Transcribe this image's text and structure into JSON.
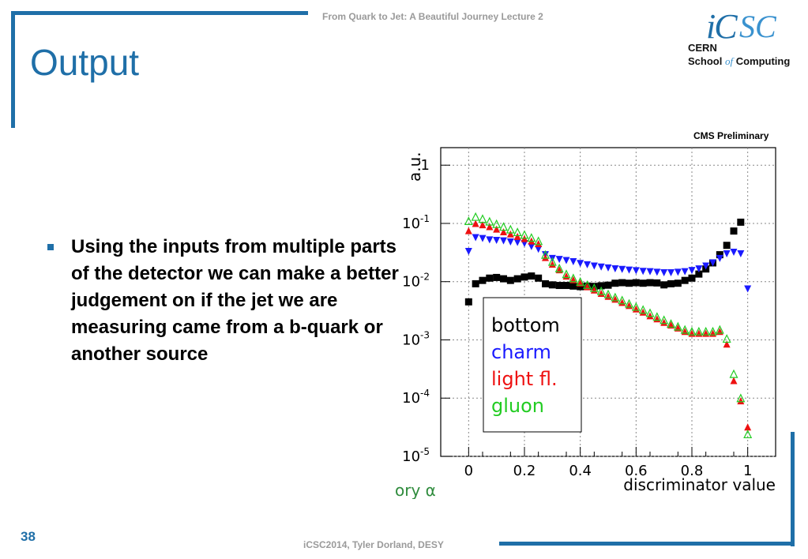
{
  "header": {
    "text": "From Quark to Jet: A Beautiful Journey Lecture 2"
  },
  "title": "Output",
  "logo": {
    "ic": "iC",
    "sc": "SC",
    "cern": "CERN",
    "school_pre": "School ",
    "school_of": "of",
    "school_post": " Computing"
  },
  "bullet": {
    "text": "Using the inputs from multiple parts of the detector we can make a better judgement on if the jet we are measuring came from a b-quark or another source"
  },
  "footer": {
    "text": "iCSC2014, Tyler Dorland, DESY",
    "slide_number": "38"
  },
  "chart_data": {
    "type": "scatter",
    "top_text": "CMS Preliminary",
    "cut_text": "ory α",
    "xlabel": "discriminator value",
    "ylabel": "a.u.",
    "xlim": [
      -0.1,
      1.1
    ],
    "ylim": [
      1e-05,
      2
    ],
    "yscale": "log",
    "xticks": [
      "0",
      "0.2",
      "0.4",
      "0.6",
      "0.8",
      "1"
    ],
    "xtick_values": [
      0,
      0.2,
      0.4,
      0.6,
      0.8,
      1
    ],
    "yticks": [
      {
        "base": "1",
        "exp": "",
        "value": 1
      },
      {
        "base": "10",
        "exp": "-1",
        "value": 0.1
      },
      {
        "base": "10",
        "exp": "-2",
        "value": 0.01
      },
      {
        "base": "10",
        "exp": "-3",
        "value": 0.001
      },
      {
        "base": "10",
        "exp": "-4",
        "value": 0.0001
      },
      {
        "base": "10",
        "exp": "-5",
        "value": 1e-05
      }
    ],
    "grid": true,
    "legend_position": "center-left",
    "series": [
      {
        "name": "bottom",
        "marker": "square",
        "color": "#000000",
        "x": [
          0.0,
          0.025,
          0.05,
          0.075,
          0.1,
          0.125,
          0.15,
          0.175,
          0.2,
          0.225,
          0.25,
          0.275,
          0.3,
          0.325,
          0.35,
          0.375,
          0.4,
          0.425,
          0.45,
          0.475,
          0.5,
          0.525,
          0.55,
          0.575,
          0.6,
          0.625,
          0.65,
          0.675,
          0.7,
          0.725,
          0.75,
          0.775,
          0.8,
          0.825,
          0.85,
          0.875,
          0.9,
          0.925,
          0.95,
          0.975
        ],
        "y": [
          0.0045,
          0.0092,
          0.0105,
          0.0115,
          0.0118,
          0.0112,
          0.0105,
          0.0112,
          0.012,
          0.0125,
          0.0115,
          0.0092,
          0.0088,
          0.0086,
          0.0086,
          0.0084,
          0.0082,
          0.0084,
          0.0083,
          0.0085,
          0.0087,
          0.0094,
          0.0096,
          0.0094,
          0.0096,
          0.0094,
          0.0096,
          0.0095,
          0.0088,
          0.0092,
          0.0094,
          0.0105,
          0.0115,
          0.0135,
          0.0165,
          0.021,
          0.029,
          0.042,
          0.074,
          0.105
        ]
      },
      {
        "name": "charm",
        "marker": "triangle-down",
        "color": "#1a1aff",
        "x": [
          0.0,
          0.025,
          0.05,
          0.075,
          0.1,
          0.125,
          0.15,
          0.175,
          0.2,
          0.225,
          0.25,
          0.275,
          0.3,
          0.325,
          0.35,
          0.375,
          0.4,
          0.425,
          0.45,
          0.475,
          0.5,
          0.525,
          0.55,
          0.575,
          0.6,
          0.625,
          0.65,
          0.675,
          0.7,
          0.725,
          0.75,
          0.775,
          0.8,
          0.825,
          0.85,
          0.875,
          0.9,
          0.925,
          0.95,
          0.975,
          1.0
        ],
        "y": [
          0.033,
          0.057,
          0.055,
          0.052,
          0.051,
          0.05,
          0.048,
          0.047,
          0.045,
          0.04,
          0.036,
          0.029,
          0.025,
          0.024,
          0.023,
          0.022,
          0.0205,
          0.0195,
          0.0185,
          0.0178,
          0.0172,
          0.0166,
          0.0162,
          0.0158,
          0.0154,
          0.015,
          0.0148,
          0.0145,
          0.0142,
          0.0142,
          0.0145,
          0.0148,
          0.0155,
          0.0165,
          0.0185,
          0.021,
          0.025,
          0.03,
          0.032,
          0.03,
          0.0075
        ]
      },
      {
        "name": "light fl.",
        "marker": "triangle-up",
        "color": "#ee1111",
        "x": [
          0.0,
          0.025,
          0.05,
          0.075,
          0.1,
          0.125,
          0.15,
          0.175,
          0.2,
          0.225,
          0.25,
          0.275,
          0.3,
          0.325,
          0.35,
          0.375,
          0.4,
          0.425,
          0.45,
          0.475,
          0.5,
          0.525,
          0.55,
          0.575,
          0.6,
          0.625,
          0.65,
          0.675,
          0.7,
          0.725,
          0.75,
          0.775,
          0.8,
          0.825,
          0.85,
          0.875,
          0.9,
          0.925,
          0.95,
          0.975,
          1.0
        ],
        "y": [
          0.075,
          0.1,
          0.095,
          0.088,
          0.08,
          0.072,
          0.066,
          0.06,
          0.055,
          0.05,
          0.045,
          0.026,
          0.02,
          0.016,
          0.0125,
          0.0108,
          0.0095,
          0.0082,
          0.0072,
          0.0063,
          0.0056,
          0.005,
          0.0044,
          0.0039,
          0.0034,
          0.003,
          0.0026,
          0.0023,
          0.002,
          0.0018,
          0.0016,
          0.0014,
          0.0013,
          0.0013,
          0.0013,
          0.0013,
          0.0014,
          0.00085,
          0.0002,
          9e-05,
          3.2e-05
        ]
      },
      {
        "name": "gluon",
        "marker": "triangle-up-open",
        "color": "#22cc22",
        "x": [
          0.0,
          0.025,
          0.05,
          0.075,
          0.1,
          0.125,
          0.15,
          0.175,
          0.2,
          0.225,
          0.25,
          0.275,
          0.3,
          0.325,
          0.35,
          0.375,
          0.4,
          0.425,
          0.45,
          0.475,
          0.5,
          0.525,
          0.55,
          0.575,
          0.6,
          0.625,
          0.65,
          0.675,
          0.7,
          0.725,
          0.75,
          0.775,
          0.8,
          0.825,
          0.85,
          0.875,
          0.9,
          0.925,
          0.95,
          0.975,
          1.0
        ],
        "y": [
          0.11,
          0.13,
          0.12,
          0.108,
          0.098,
          0.088,
          0.079,
          0.071,
          0.064,
          0.057,
          0.05,
          0.029,
          0.022,
          0.017,
          0.0135,
          0.0115,
          0.01,
          0.0088,
          0.0078,
          0.0069,
          0.0061,
          0.0054,
          0.0048,
          0.0042,
          0.0037,
          0.0033,
          0.0029,
          0.0025,
          0.0022,
          0.0019,
          0.0017,
          0.0015,
          0.0014,
          0.0014,
          0.0014,
          0.0014,
          0.0015,
          0.00105,
          0.00026,
          0.0001,
          2.4e-05
        ]
      }
    ]
  }
}
